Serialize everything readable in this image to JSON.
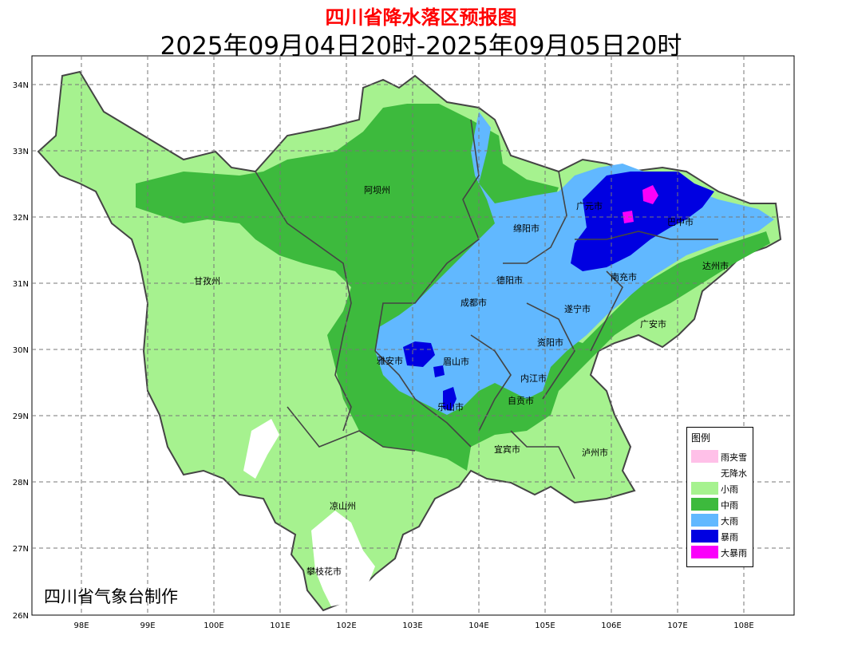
{
  "title": "四川省降水落区预报图",
  "subtitle": "2025年09月04日20时-2025年09月05日20时",
  "credit": "四川省气象台制作",
  "axes": {
    "lon_labels": [
      "98E",
      "99E",
      "100E",
      "101E",
      "102E",
      "103E",
      "104E",
      "105E",
      "106E",
      "107E",
      "108E"
    ],
    "lat_labels": [
      "34N",
      "33N",
      "32N",
      "31N",
      "30N",
      "29N",
      "28N",
      "27N",
      "26N"
    ]
  },
  "cities": [
    {
      "name": "阿坝州"
    },
    {
      "name": "甘孜州"
    },
    {
      "name": "绵阳市"
    },
    {
      "name": "广元市"
    },
    {
      "name": "巴中市"
    },
    {
      "name": "德阳市"
    },
    {
      "name": "成都市"
    },
    {
      "name": "南充市"
    },
    {
      "name": "达州市"
    },
    {
      "name": "遂宁市"
    },
    {
      "name": "广安市"
    },
    {
      "name": "雅安市"
    },
    {
      "name": "眉山市"
    },
    {
      "name": "资阳市"
    },
    {
      "name": "内江市"
    },
    {
      "name": "乐山市"
    },
    {
      "name": "自贡市"
    },
    {
      "name": "宜宾市"
    },
    {
      "name": "泸州市"
    },
    {
      "name": "凉山州"
    },
    {
      "name": "攀枝花市"
    }
  ],
  "legend": {
    "title": "图例",
    "items": [
      {
        "label": "雨夹雪",
        "color": "#ffc0e8"
      },
      {
        "label": "无降水",
        "color": "#ffffff"
      },
      {
        "label": "小雨",
        "color": "#a6f28f"
      },
      {
        "label": "中雨",
        "color": "#3dba3d"
      },
      {
        "label": "大雨",
        "color": "#61b8ff"
      },
      {
        "label": "暴雨",
        "color": "#0000e1"
      },
      {
        "label": "大暴雨",
        "color": "#fa00fa"
      }
    ]
  }
}
